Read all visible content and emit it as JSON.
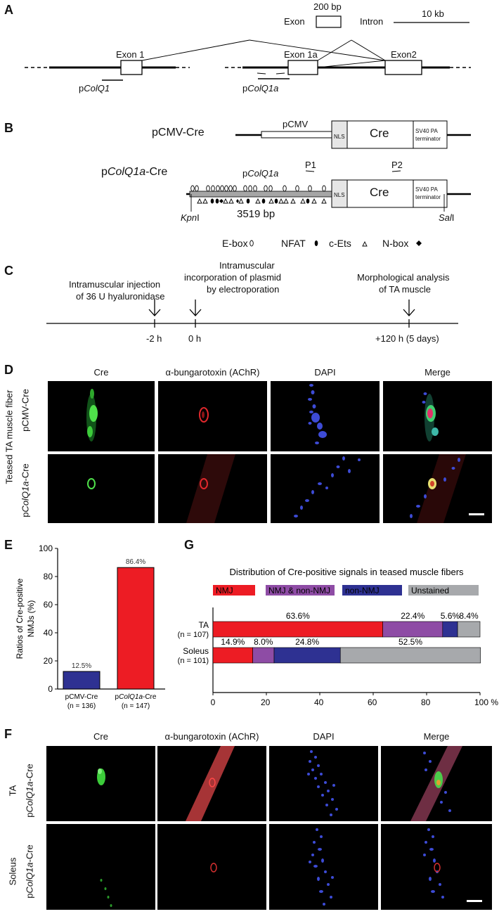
{
  "panelA": {
    "letter": "A",
    "scale_exon_label": "Exon",
    "scale_exon_size": "200 bp",
    "scale_intron_label": "Intron",
    "scale_intron_size": "10 kb",
    "exon1": "Exon 1",
    "exon1a": "Exon 1a",
    "exon2": "Exon2",
    "promoter1_prefix": "p",
    "promoter1_italic": "ColQ1",
    "promoter1a_prefix": "p",
    "promoter1a_italic": "ColQ1a"
  },
  "panelB": {
    "letter": "B",
    "construct1": "pCMV-Cre",
    "pcmv": "pCMV",
    "nls": "NLS",
    "cre": "Cre",
    "sv40_line1": "SV40 PA",
    "sv40_line2": "terminator",
    "construct2_prefix": "p",
    "construct2_italic": "ColQ1a",
    "construct2_suffix": "-Cre",
    "promoter_prefix": "p",
    "promoter_italic": "ColQ1a",
    "p1": "P1",
    "p2": "P2",
    "size": "3519 bp",
    "kpn_italic": "Kpn",
    "kpn_suffix": "I",
    "sal_italic": "Sal",
    "sal_suffix": "I",
    "legend": [
      {
        "label": "E-box",
        "symbol": "oval"
      },
      {
        "label": "NFAT",
        "symbol": "filled-oval"
      },
      {
        "label": "c-Ets",
        "symbol": "triangle"
      },
      {
        "label": "N-box",
        "symbol": "diamond"
      }
    ]
  },
  "panelC": {
    "letter": "C",
    "events": [
      {
        "line1": "Intramuscular injection",
        "line2": "of 36 U hyaluronidase",
        "line3": "",
        "time": "-2 h"
      },
      {
        "line1": "Intramuscular",
        "line2": "incorporation of plasmid",
        "line3": "by electroporation",
        "time": "0 h"
      },
      {
        "line1": "Morphological analysis",
        "line2": "of TA muscle",
        "line3": "",
        "time": "+120 h (5 days)"
      }
    ]
  },
  "panelD": {
    "letter": "D",
    "columns": [
      "Cre",
      "α-bungarotoxin (AChR)",
      "DAPI",
      "Merge"
    ],
    "side_label": "Teased TA muscle fiber",
    "row1": "pCMV-Cre",
    "row2_prefix": "p",
    "row2_italic": "ColQ1a",
    "row2_suffix": "-Cre"
  },
  "panelE": {
    "letter": "E",
    "chart_data": {
      "type": "bar",
      "ylabel_line1": "Ratios of Cre-positive",
      "ylabel_line2": "NMJs (%)",
      "ylim": [
        0,
        100
      ],
      "yticks": [
        "0",
        "20",
        "40",
        "60",
        "80",
        "100"
      ],
      "categories": [
        {
          "name": "pCMV-Cre",
          "n": "(n = 136)",
          "value": 12.5,
          "label": "12.5%",
          "color": "#2e3192"
        },
        {
          "name": "pColQ1a-Cre",
          "n": "(n = 147)",
          "value": 86.4,
          "label": "86.4%",
          "color": "#ed1c24"
        }
      ]
    }
  },
  "panelG": {
    "letter": "G",
    "chart_data": {
      "type": "bar",
      "orientation": "horizontal-stacked",
      "title": "Distribution of Cre-positive signals in teased muscle fibers",
      "legend": [
        {
          "name": "NMJ",
          "color": "#ed1c24"
        },
        {
          "name": "NMJ & non-NMJ",
          "color": "#8e4ca5"
        },
        {
          "name": "non-NMJ",
          "color": "#2e3192"
        },
        {
          "name": "Unstained",
          "color": "#a7a9ac"
        }
      ],
      "xticks": [
        "0",
        "20",
        "40",
        "60",
        "80",
        "100 %"
      ],
      "xlim": [
        0,
        100
      ],
      "rows": [
        {
          "name": "TA",
          "n": "(n = 107)",
          "values": [
            63.6,
            22.4,
            5.6,
            8.4
          ],
          "labels": [
            "63.6%",
            "22.4%",
            "5.6%",
            "8.4%"
          ]
        },
        {
          "name": "Soleus",
          "n": "(n = 101)",
          "values": [
            14.9,
            8.0,
            24.8,
            52.5
          ],
          "labels": [
            "14.9%",
            "8.0%",
            "24.8%",
            "52.5%"
          ]
        }
      ]
    }
  },
  "panelF": {
    "letter": "F",
    "columns": [
      "Cre",
      "α-bungarotoxin (AChR)",
      "DAPI",
      "Merge"
    ],
    "row1_tissue": "TA",
    "row2_tissue": "Soleus",
    "construct_prefix": "p",
    "construct_italic": "ColQ1a",
    "construct_suffix": "-Cre"
  }
}
